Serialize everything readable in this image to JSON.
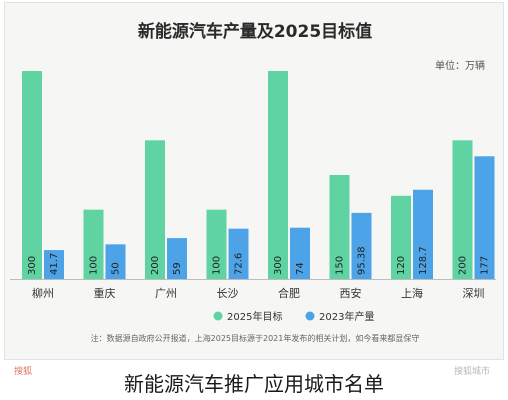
{
  "chart_data": {
    "type": "bar",
    "title": "新能源汽车产量及2025目标值",
    "unit_label": "单位：万辆",
    "categories": [
      "柳州",
      "重庆",
      "广州",
      "长沙",
      "合肥",
      "西安",
      "上海",
      "深圳"
    ],
    "series": [
      {
        "name": "2025年目标",
        "values": [
          300,
          100,
          200,
          100,
          300,
          150,
          120,
          200
        ],
        "color": "#5fd3a2"
      },
      {
        "name": "2023年产量",
        "values": [
          41.7,
          50,
          59,
          72.6,
          74,
          95.38,
          128.7,
          177
        ],
        "color": "#4da3e8"
      }
    ],
    "data_labels": [
      [
        "300",
        "100",
        "200",
        "100",
        "300",
        "150",
        "120",
        "200"
      ],
      [
        "41.7",
        "50",
        "59",
        "72.6",
        "74",
        "95.38",
        "128.7",
        "177"
      ]
    ],
    "ylim": [
      0,
      300
    ],
    "grid": false,
    "legend_position": "bottom"
  },
  "footnote": "注：数据源自政府公开报道，上海2025目标源于2021年发布的相关计划，如今看来都显保守",
  "watermark_left": "搜狐",
  "watermark_right": "搜狐城市",
  "caption": "新能源汽车推广应用城市名单"
}
